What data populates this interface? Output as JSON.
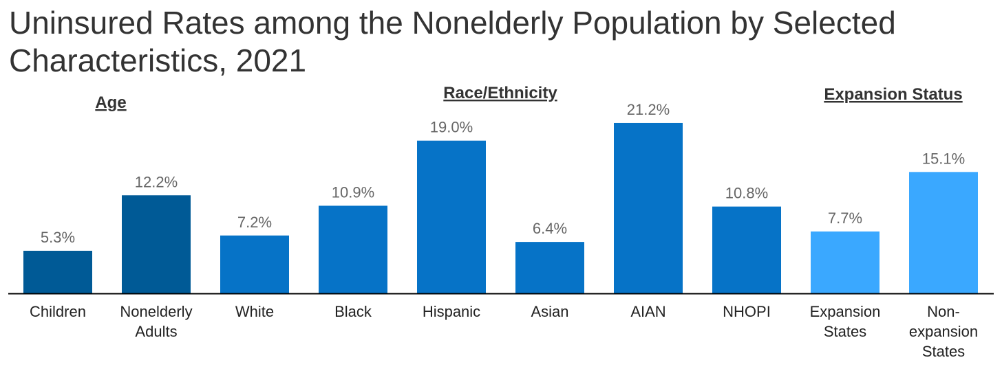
{
  "chart_data": {
    "type": "bar",
    "title": "Uninsured Rates among the Nonelderly Population by Selected Characteristics, 2021",
    "xlabel": "",
    "ylabel": "",
    "ylim": [
      0,
      22
    ],
    "grid": false,
    "legend": "none",
    "value_format": "{v}%",
    "groups": [
      {
        "label": "Age",
        "categories": [
          "Children",
          "Nonelderly Adults"
        ],
        "color": "#005A96"
      },
      {
        "label": "Race/Ethnicity",
        "categories": [
          "White",
          "Black",
          "Hispanic",
          "Asian",
          "AIAN",
          "NHOPI"
        ],
        "color": "#0673C7"
      },
      {
        "label": "Expansion Status",
        "categories": [
          "Expansion States",
          "Non-expansion States"
        ],
        "color": "#3AA8FF"
      }
    ],
    "categories": [
      "Children",
      "Nonelderly Adults",
      "White",
      "Black",
      "Hispanic",
      "Asian",
      "AIAN",
      "NHOPI",
      "Expansion States",
      "Non-expansion States"
    ],
    "tick_labels": [
      [
        "Children"
      ],
      [
        "Nonelderly",
        "Adults"
      ],
      [
        "White"
      ],
      [
        "Black"
      ],
      [
        "Hispanic"
      ],
      [
        "Asian"
      ],
      [
        "AIAN"
      ],
      [
        "NHOPI"
      ],
      [
        "Expansion",
        "States"
      ],
      [
        "Non-",
        "expansion",
        "States"
      ]
    ],
    "values": [
      5.3,
      12.2,
      7.2,
      10.9,
      19.0,
      6.4,
      21.2,
      10.8,
      7.7,
      15.1
    ],
    "data_labels": [
      "5.3%",
      "12.2%",
      "7.2%",
      "10.9%",
      "19.0%",
      "6.4%",
      "21.2%",
      "10.8%",
      "7.7%",
      "15.1%"
    ]
  }
}
